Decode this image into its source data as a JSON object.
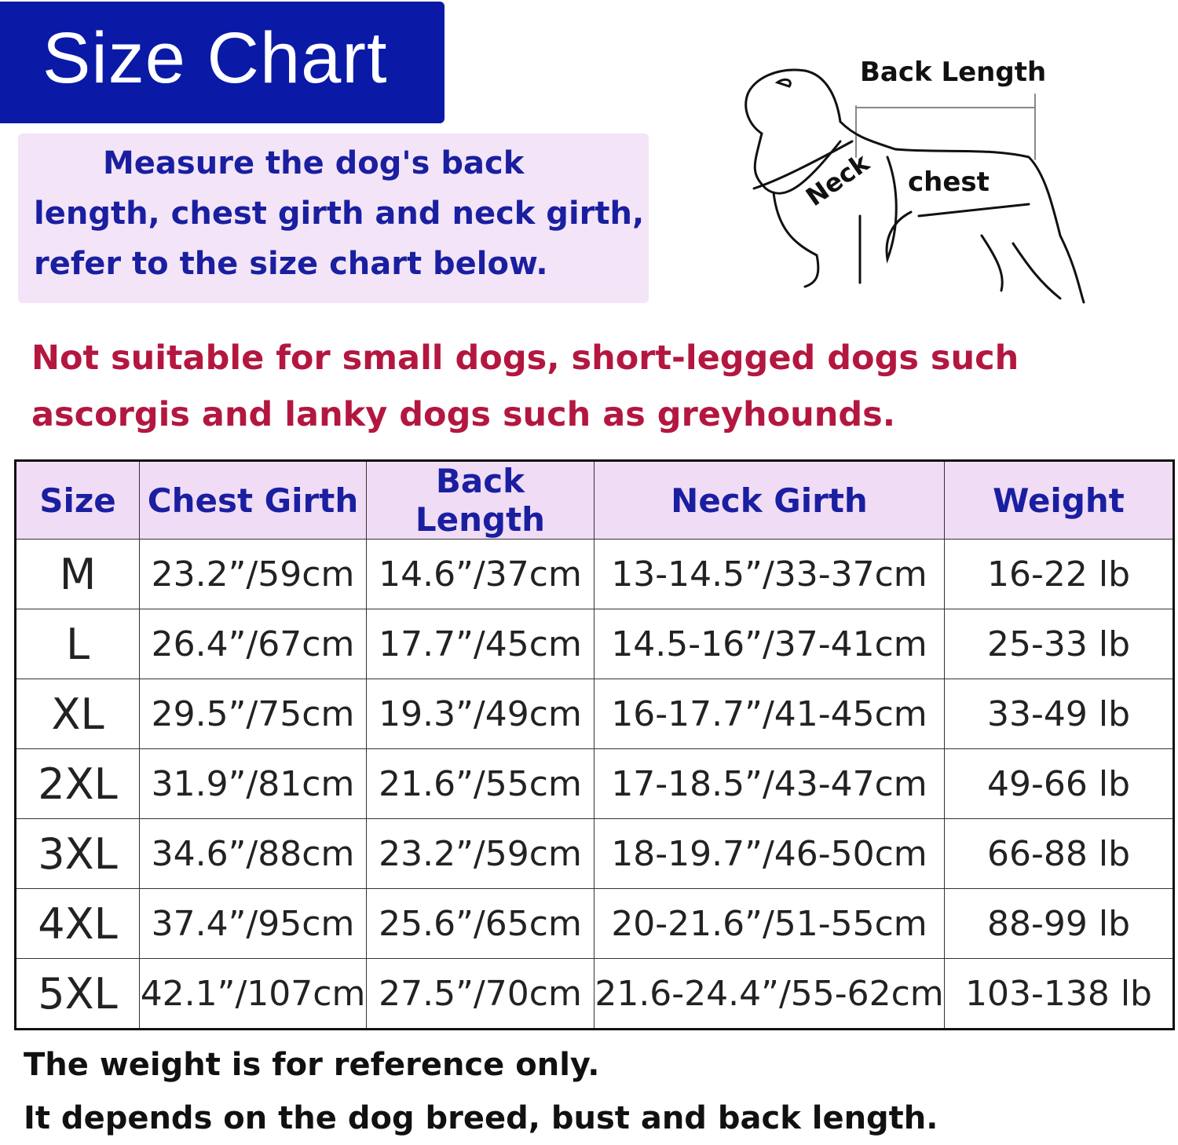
{
  "title": "Size Chart",
  "instructions": "Measure the dog's back length, chest girth and neck girth,   refer to the size chart below.",
  "diagram": {
    "back_length": "Back Length",
    "neck": "Neck",
    "chest": "chest"
  },
  "warning": "Not suitable for small dogs, short-legged dogs such ascorgis and lanky dogs such as greyhounds.",
  "table": {
    "headers": [
      "Size",
      "Chest Girth",
      "Back Length",
      "Neck Girth",
      "Weight"
    ],
    "rows": [
      [
        "M",
        "23.2”/59cm",
        "14.6”/37cm",
        "13-14.5”/33-37cm",
        "16-22 lb"
      ],
      [
        "L",
        "26.4”/67cm",
        "17.7”/45cm",
        "14.5-16”/37-41cm",
        "25-33 lb"
      ],
      [
        "XL",
        "29.5”/75cm",
        "19.3”/49cm",
        "16-17.7”/41-45cm",
        "33-49 lb"
      ],
      [
        "2XL",
        "31.9”/81cm",
        "21.6”/55cm",
        "17-18.5”/43-47cm",
        "49-66 lb"
      ],
      [
        "3XL",
        "34.6”/88cm",
        "23.2”/59cm",
        "18-19.7”/46-50cm",
        "66-88 lb"
      ],
      [
        "4XL",
        "37.4”/95cm",
        "25.6”/65cm",
        "20-21.6”/51-55cm",
        "88-99 lb"
      ],
      [
        "5XL",
        "42.1”/107cm",
        "27.5”/70cm",
        "21.6-24.4”/55-62cm",
        "103-138 lb"
      ]
    ]
  },
  "footer": [
    "The weight is for reference only.",
    "It depends on the dog breed, bust and back length."
  ],
  "colors": {
    "title_bg": "#0a1aa6",
    "accent_text": "#1a1fa0",
    "warning": "#b3173f",
    "panel_bg": "#f3e5f7"
  }
}
